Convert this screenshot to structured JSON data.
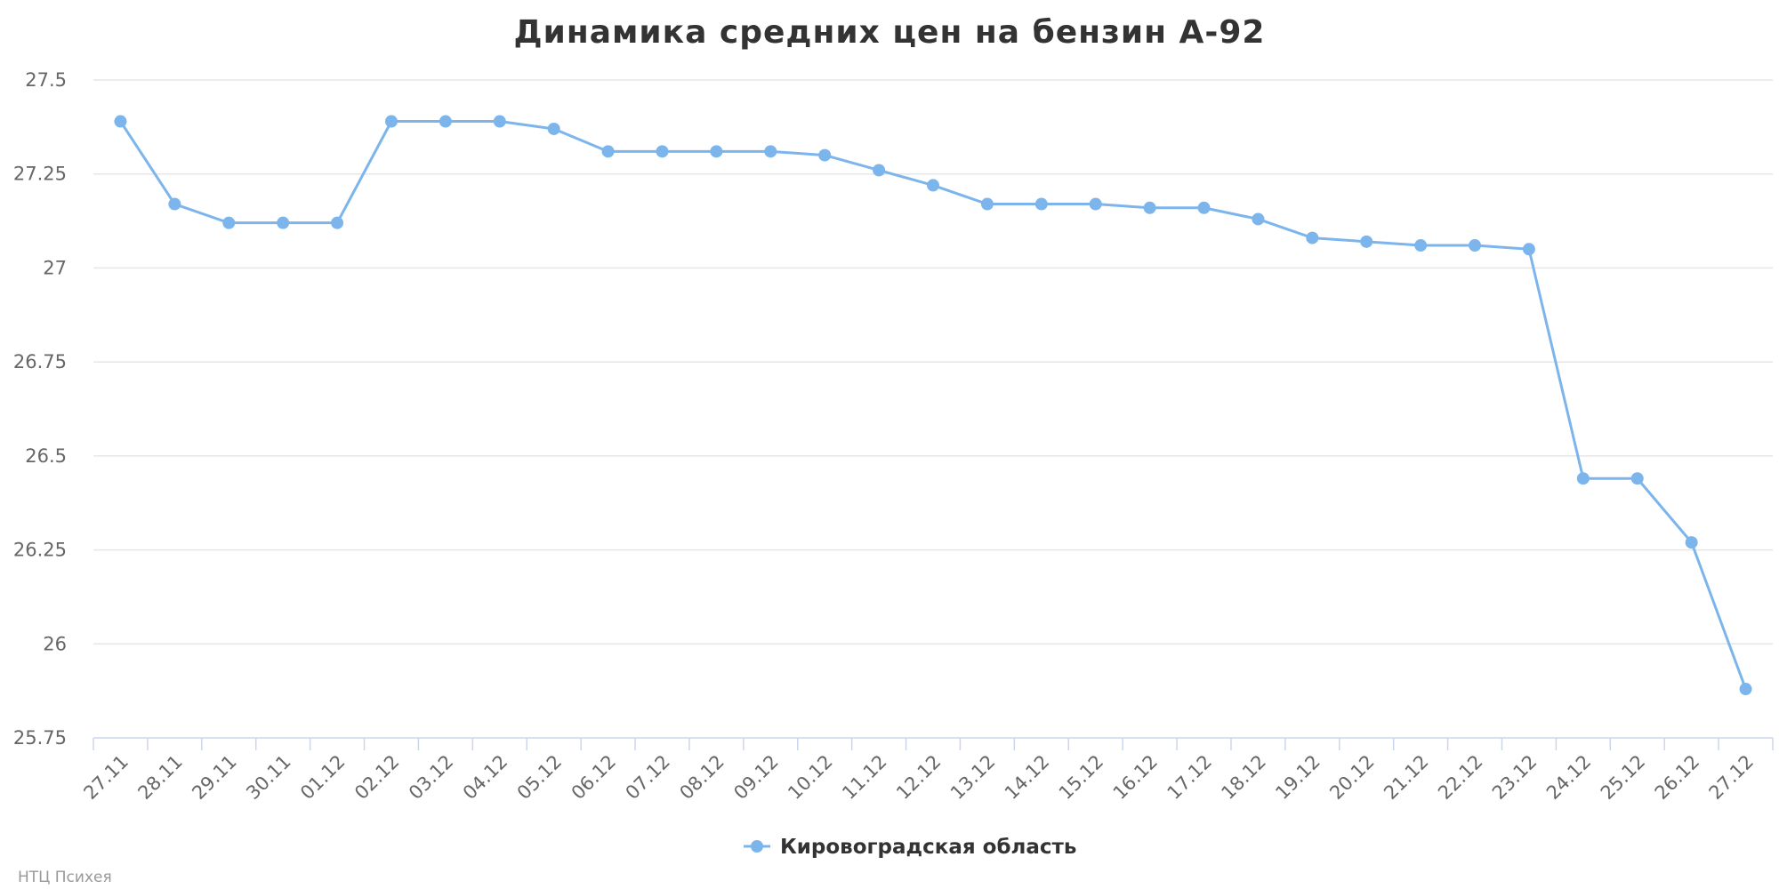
{
  "chart_data": {
    "type": "line",
    "title": "Динамика средних цен на бензин А-92",
    "xlabel": "",
    "ylabel": "",
    "ylim": [
      25.75,
      27.5
    ],
    "yticks": [
      "27.5",
      "27.25",
      "27",
      "26.75",
      "26.5",
      "26.25",
      "26",
      "25.75"
    ],
    "ytick_values": [
      27.5,
      27.25,
      27.0,
      26.75,
      26.5,
      26.25,
      26.0,
      25.75
    ],
    "categories": [
      "27.11",
      "28.11",
      "29.11",
      "30.11",
      "01.12",
      "02.12",
      "03.12",
      "04.12",
      "05.12",
      "06.12",
      "07.12",
      "08.12",
      "09.12",
      "10.12",
      "11.12",
      "12.12",
      "13.12",
      "14.12",
      "15.12",
      "16.12",
      "17.12",
      "18.12",
      "19.12",
      "20.12",
      "21.12",
      "22.12",
      "23.12",
      "24.12",
      "25.12",
      "26.12",
      "27.12"
    ],
    "series": [
      {
        "name": "Кировоградская область",
        "color": "#7cb5ec",
        "values": [
          27.39,
          27.17,
          27.12,
          27.12,
          27.12,
          27.39,
          27.39,
          27.39,
          27.37,
          27.31,
          27.31,
          27.31,
          27.31,
          27.3,
          27.26,
          27.22,
          27.17,
          27.17,
          27.17,
          27.16,
          27.16,
          27.13,
          27.08,
          27.07,
          27.06,
          27.06,
          27.05,
          26.44,
          26.44,
          26.27,
          25.88
        ]
      }
    ],
    "grid": true,
    "legend_position": "bottom-center"
  },
  "credit": "НТЦ Психея"
}
